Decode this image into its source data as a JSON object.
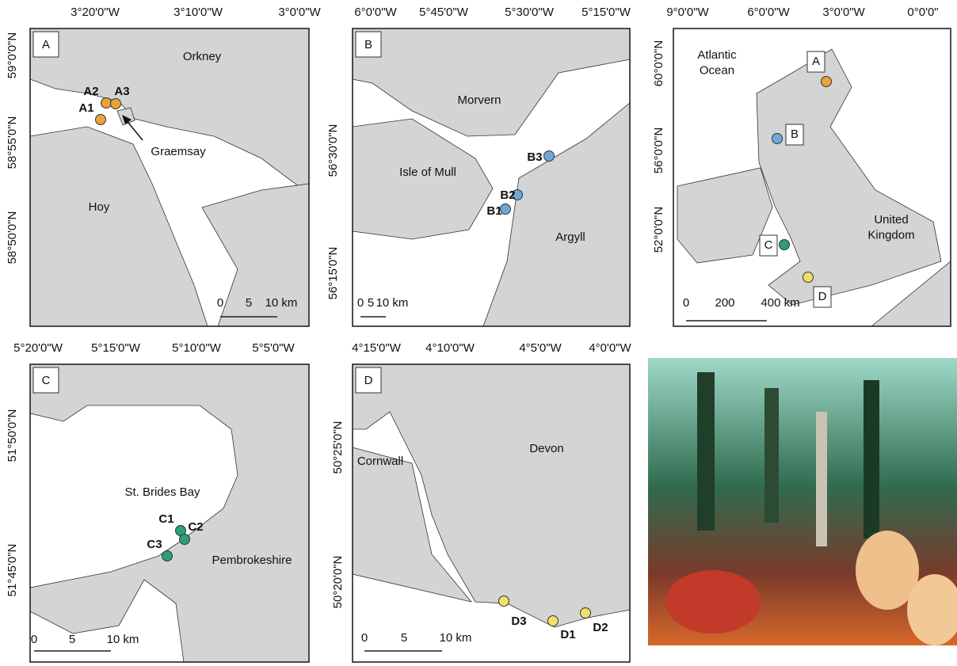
{
  "panels": [
    {
      "label": "A",
      "lon_ticks": [
        "3°20'0\"W",
        "3°10'0\"W",
        "3°0'0\"W"
      ],
      "lat_ticks": [
        "59°0'0\"N",
        "58°55'0\"N",
        "58°50'0\"N"
      ],
      "places": [
        "Orkney",
        "Graemsay",
        "Hoy"
      ],
      "sites": [
        "A1",
        "A2",
        "A3"
      ],
      "scale": [
        "0",
        "5",
        "10 km"
      ]
    },
    {
      "label": "B",
      "lon_ticks": [
        "6°0'0\"W",
        "5°45'0\"W",
        "5°30'0\"W",
        "5°15'0\"W"
      ],
      "lat_ticks": [
        "56°30'0\"N",
        "56°15'0\"N"
      ],
      "places": [
        "Morvern",
        "Isle of Mull",
        "Argyll"
      ],
      "sites": [
        "B1",
        "B2",
        "B3"
      ],
      "scale": [
        "0",
        "5",
        "10 km"
      ]
    },
    {
      "label": "C",
      "lon_ticks": [
        "5°20'0\"W",
        "5°15'0\"W",
        "5°10'0\"W",
        "5°5'0\"W"
      ],
      "lat_ticks": [
        "51°50'0\"N",
        "51°45'0\"N"
      ],
      "places": [
        "St. Brides Bay",
        "Pembrokeshire"
      ],
      "sites": [
        "C1",
        "C2",
        "C3"
      ],
      "scale": [
        "0",
        "5",
        "10 km"
      ]
    },
    {
      "label": "D",
      "lon_ticks": [
        "4°15'0\"W",
        "4°10'0\"W",
        "4°5'0\"W",
        "4°0'0\"W"
      ],
      "lat_ticks": [
        "50°25'0\"N",
        "50°20'0\"N"
      ],
      "places": [
        "Cornwall",
        "Devon"
      ],
      "sites": [
        "D1",
        "D2",
        "D3"
      ],
      "scale": [
        "0",
        "5",
        "10 km"
      ]
    }
  ],
  "overview": {
    "lon_ticks": [
      "9°0'0\"W",
      "6°0'0\"W",
      "3°0'0\"W",
      "0°0'0\""
    ],
    "lat_ticks": [
      "60°0'0\"N",
      "56°0'0\"N",
      "52°0'0\"N"
    ],
    "places": [
      "Atlantic Ocean",
      "United Kingdom"
    ],
    "markers": [
      "A",
      "B",
      "C",
      "D"
    ],
    "scale": [
      "0",
      "200",
      "400 km"
    ]
  }
}
